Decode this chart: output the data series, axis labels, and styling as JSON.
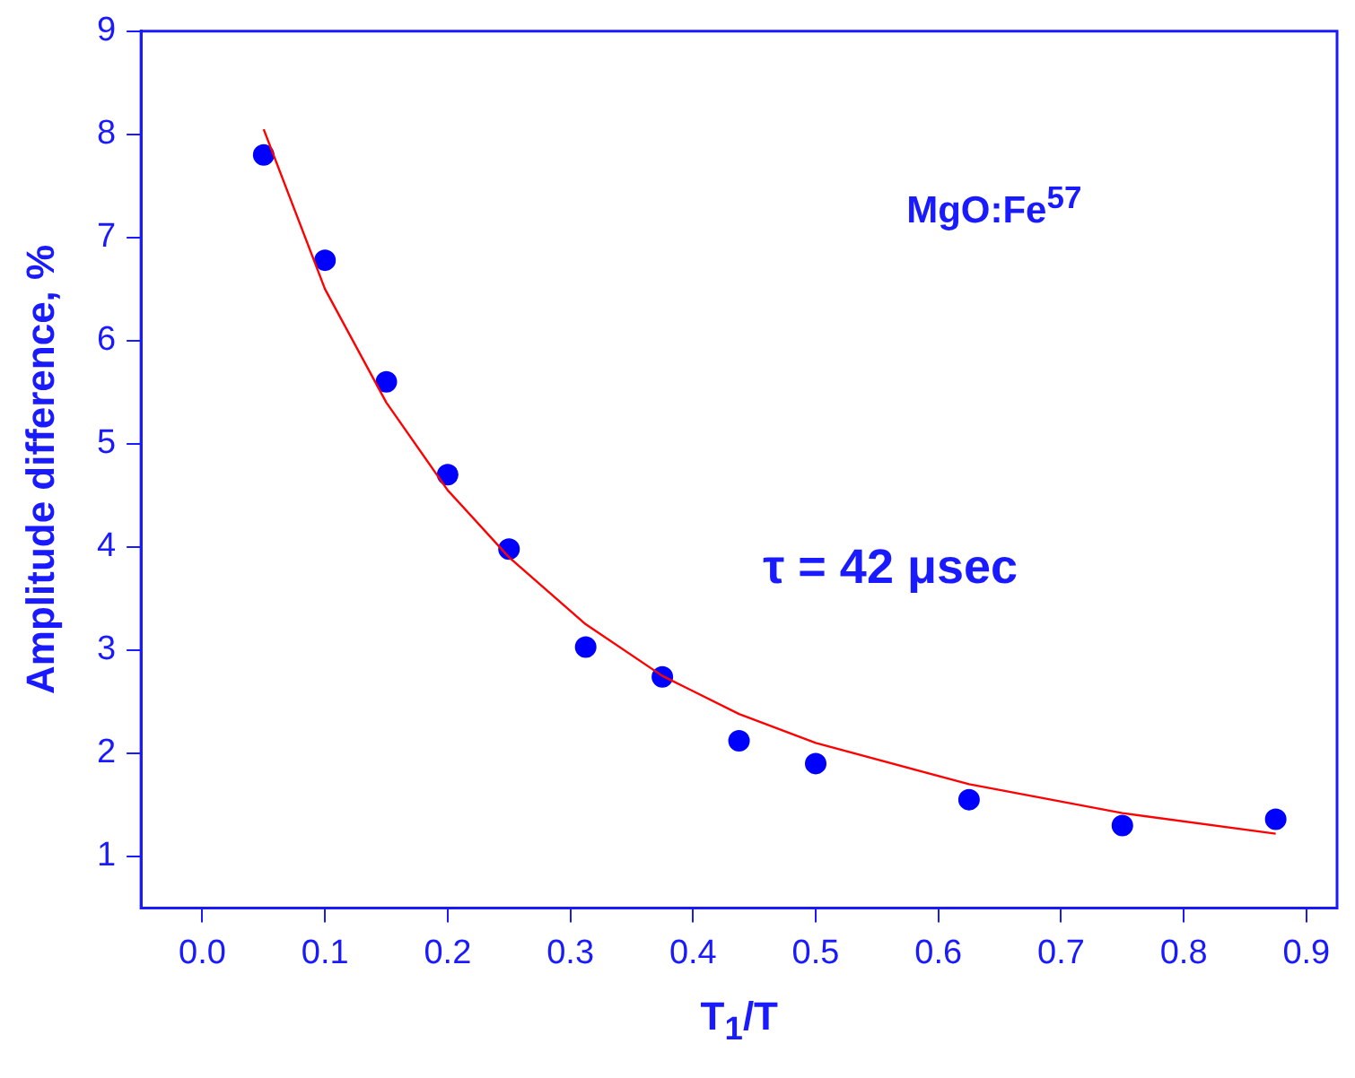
{
  "chart_data": {
    "type": "scatter",
    "xlabel": "T$_{1}$/T",
    "ylabel": "Amplitude difference, %",
    "annotations": [
      "MgO:Fe$^{57}$",
      "τ = 42 μsec"
    ],
    "series": [
      {
        "marker": "circle",
        "color": "#0000ff",
        "x": [
          0.05,
          0.1,
          0.15,
          0.2,
          0.25,
          0.3125,
          0.375,
          0.4375,
          0.5,
          0.625,
          0.75,
          0.875
        ],
        "values": [
          7.8,
          6.78,
          5.6,
          4.7,
          3.98,
          3.03,
          2.74,
          2.12,
          1.9,
          1.55,
          1.3,
          1.36
        ]
      },
      {
        "type": "line",
        "marker": "none",
        "color": "#ff0000",
        "x": [
          0.05,
          0.1,
          0.15,
          0.2,
          0.25,
          0.3125,
          0.375,
          0.4375,
          0.5,
          0.625,
          0.75,
          0.875
        ],
        "values": [
          8.05,
          6.5,
          5.4,
          4.55,
          3.9,
          3.25,
          2.75,
          2.38,
          2.1,
          1.7,
          1.42,
          1.22
        ]
      }
    ],
    "grid": false,
    "legend": false,
    "xlim": [
      -0.05,
      0.925
    ],
    "ylim": [
      0.5,
      9
    ],
    "xticks": [
      {
        "value": 0,
        "label": "0.0"
      },
      {
        "value": 0.1,
        "label": "0.1"
      },
      {
        "value": 0.2,
        "label": "0.2"
      },
      {
        "value": 0.3,
        "label": "0.3"
      },
      {
        "value": 0.4,
        "label": "0.4"
      },
      {
        "value": 0.5,
        "label": "0.5"
      },
      {
        "value": 0.6,
        "label": "0.6"
      },
      {
        "value": 0.7,
        "label": "0.7"
      },
      {
        "value": 0.8,
        "label": "0.8"
      },
      {
        "value": 0.9,
        "label": "0.9"
      }
    ],
    "yticks": [
      1,
      2,
      3,
      4,
      5,
      6,
      7,
      8,
      9
    ]
  }
}
